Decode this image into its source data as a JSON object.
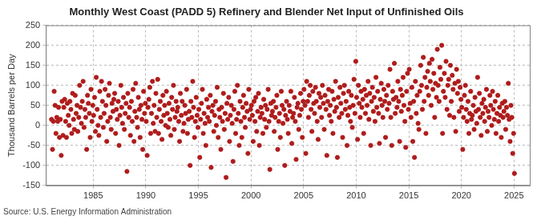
{
  "chart_data": {
    "type": "scatter",
    "title": "Monthly West Coast (PADD 5) Refinery and Blender Net Input of Unfinished Oils",
    "y_label": "Thousand Barrels per Day",
    "source": "Source: U.S. Energy Information Administration",
    "color": "#b01c1c",
    "marker": "circle",
    "grid": true,
    "xlim": [
      1980.5,
      2026.5
    ],
    "xticks": [
      1985,
      1990,
      1995,
      2000,
      2005,
      2010,
      2015,
      2020,
      2025
    ],
    "ylim": [
      -150,
      250
    ],
    "yticks": [
      -150,
      -100,
      -50,
      0,
      50,
      100,
      150,
      200,
      250
    ],
    "x": [
      1981.04,
      1981.13,
      1981.21,
      1981.29,
      1981.38,
      1981.46,
      1981.54,
      1981.63,
      1981.71,
      1981.79,
      1981.88,
      1981.96,
      1982.04,
      1982.13,
      1982.21,
      1982.29,
      1982.38,
      1982.46,
      1982.54,
      1982.63,
      1982.71,
      1982.79,
      1982.88,
      1982.96,
      1983.04,
      1983.13,
      1983.21,
      1983.29,
      1983.38,
      1983.46,
      1983.54,
      1983.63,
      1983.71,
      1983.79,
      1983.88,
      1983.96,
      1984.04,
      1984.13,
      1984.21,
      1984.29,
      1984.38,
      1984.46,
      1984.54,
      1984.63,
      1984.71,
      1984.79,
      1984.88,
      1984.96,
      1985.04,
      1985.13,
      1985.21,
      1985.29,
      1985.38,
      1985.46,
      1985.54,
      1985.63,
      1985.71,
      1985.79,
      1985.88,
      1985.96,
      1986.04,
      1986.13,
      1986.21,
      1986.29,
      1986.38,
      1986.46,
      1986.54,
      1986.63,
      1986.71,
      1986.79,
      1986.88,
      1986.96,
      1987.04,
      1987.13,
      1987.21,
      1987.29,
      1987.38,
      1987.46,
      1987.54,
      1987.63,
      1987.71,
      1987.79,
      1987.88,
      1987.96,
      1988.04,
      1988.13,
      1988.21,
      1988.29,
      1988.38,
      1988.46,
      1988.54,
      1988.63,
      1988.71,
      1988.79,
      1988.88,
      1988.96,
      1989.04,
      1989.13,
      1989.21,
      1989.29,
      1989.38,
      1989.46,
      1989.54,
      1989.63,
      1989.71,
      1989.79,
      1989.88,
      1989.96,
      1990.04,
      1990.13,
      1990.21,
      1990.29,
      1990.38,
      1990.46,
      1990.54,
      1990.63,
      1990.71,
      1990.79,
      1990.88,
      1990.96,
      1991.04,
      1991.13,
      1991.21,
      1991.29,
      1991.38,
      1991.46,
      1991.54,
      1991.63,
      1991.71,
      1991.79,
      1991.88,
      1991.96,
      1992.04,
      1992.13,
      1992.21,
      1992.29,
      1992.38,
      1992.46,
      1992.54,
      1992.63,
      1992.71,
      1992.79,
      1992.88,
      1992.96,
      1993.04,
      1993.13,
      1993.21,
      1993.29,
      1993.38,
      1993.46,
      1993.54,
      1993.63,
      1993.71,
      1993.79,
      1993.88,
      1993.96,
      1994.04,
      1994.13,
      1994.21,
      1994.29,
      1994.38,
      1994.46,
      1994.54,
      1994.63,
      1994.71,
      1994.79,
      1994.88,
      1994.96,
      1995.04,
      1995.13,
      1995.21,
      1995.29,
      1995.38,
      1995.46,
      1995.54,
      1995.63,
      1995.71,
      1995.79,
      1995.88,
      1995.96,
      1996.04,
      1996.13,
      1996.21,
      1996.29,
      1996.38,
      1996.46,
      1996.54,
      1996.63,
      1996.71,
      1996.79,
      1996.88,
      1996.96,
      1997.04,
      1997.13,
      1997.21,
      1997.29,
      1997.38,
      1997.46,
      1997.54,
      1997.63,
      1997.71,
      1997.79,
      1997.88,
      1997.96,
      1998.04,
      1998.13,
      1998.21,
      1998.29,
      1998.38,
      1998.46,
      1998.54,
      1998.63,
      1998.71,
      1998.79,
      1998.88,
      1998.96,
      1999.04,
      1999.13,
      1999.21,
      1999.29,
      1999.38,
      1999.46,
      1999.54,
      1999.63,
      1999.71,
      1999.79,
      1999.88,
      1999.96,
      2000.04,
      2000.13,
      2000.21,
      2000.29,
      2000.38,
      2000.46,
      2000.54,
      2000.63,
      2000.71,
      2000.79,
      2000.88,
      2000.96,
      2001.04,
      2001.13,
      2001.21,
      2001.29,
      2001.38,
      2001.46,
      2001.54,
      2001.63,
      2001.71,
      2001.79,
      2001.88,
      2001.96,
      2002.04,
      2002.13,
      2002.21,
      2002.29,
      2002.38,
      2002.46,
      2002.54,
      2002.63,
      2002.71,
      2002.79,
      2002.88,
      2002.96,
      2003.04,
      2003.13,
      2003.21,
      2003.29,
      2003.38,
      2003.46,
      2003.54,
      2003.63,
      2003.71,
      2003.79,
      2003.88,
      2003.96,
      2004.04,
      2004.13,
      2004.21,
      2004.29,
      2004.38,
      2004.46,
      2004.54,
      2004.63,
      2004.71,
      2004.79,
      2004.88,
      2004.96,
      2005.04,
      2005.13,
      2005.21,
      2005.29,
      2005.38,
      2005.46,
      2005.54,
      2005.63,
      2005.71,
      2005.79,
      2005.88,
      2005.96,
      2006.04,
      2006.13,
      2006.21,
      2006.29,
      2006.38,
      2006.46,
      2006.54,
      2006.63,
      2006.71,
      2006.79,
      2006.88,
      2006.96,
      2007.04,
      2007.13,
      2007.21,
      2007.29,
      2007.38,
      2007.46,
      2007.54,
      2007.63,
      2007.71,
      2007.79,
      2007.88,
      2007.96,
      2008.04,
      2008.13,
      2008.21,
      2008.29,
      2008.38,
      2008.46,
      2008.54,
      2008.63,
      2008.71,
      2008.79,
      2008.88,
      2008.96,
      2009.04,
      2009.13,
      2009.21,
      2009.29,
      2009.38,
      2009.46,
      2009.54,
      2009.63,
      2009.71,
      2009.79,
      2009.88,
      2009.96,
      2010.04,
      2010.13,
      2010.21,
      2010.29,
      2010.38,
      2010.46,
      2010.54,
      2010.63,
      2010.71,
      2010.79,
      2010.88,
      2010.96,
      2011.04,
      2011.13,
      2011.21,
      2011.29,
      2011.38,
      2011.46,
      2011.54,
      2011.63,
      2011.71,
      2011.79,
      2011.88,
      2011.96,
      2012.04,
      2012.13,
      2012.21,
      2012.29,
      2012.38,
      2012.46,
      2012.54,
      2012.63,
      2012.71,
      2012.79,
      2012.88,
      2012.96,
      2013.04,
      2013.13,
      2013.21,
      2013.29,
      2013.38,
      2013.46,
      2013.54,
      2013.63,
      2013.71,
      2013.79,
      2013.88,
      2013.96,
      2014.04,
      2014.13,
      2014.21,
      2014.29,
      2014.38,
      2014.46,
      2014.54,
      2014.63,
      2014.71,
      2014.79,
      2014.88,
      2014.96,
      2015.04,
      2015.13,
      2015.21,
      2015.29,
      2015.38,
      2015.46,
      2015.54,
      2015.63,
      2015.71,
      2015.79,
      2015.88,
      2015.96,
      2016.04,
      2016.13,
      2016.21,
      2016.29,
      2016.38,
      2016.46,
      2016.54,
      2016.63,
      2016.71,
      2016.79,
      2016.88,
      2016.96,
      2017.04,
      2017.13,
      2017.21,
      2017.29,
      2017.38,
      2017.46,
      2017.54,
      2017.63,
      2017.71,
      2017.79,
      2017.88,
      2017.96,
      2018.04,
      2018.13,
      2018.21,
      2018.29,
      2018.38,
      2018.46,
      2018.54,
      2018.63,
      2018.71,
      2018.79,
      2018.88,
      2018.96,
      2019.04,
      2019.13,
      2019.21,
      2019.29,
      2019.38,
      2019.46,
      2019.54,
      2019.63,
      2019.71,
      2019.79,
      2019.88,
      2019.96,
      2020.04,
      2020.13,
      2020.21,
      2020.29,
      2020.38,
      2020.46,
      2020.54,
      2020.63,
      2020.71,
      2020.79,
      2020.88,
      2020.96,
      2021.04,
      2021.13,
      2021.21,
      2021.29,
      2021.38,
      2021.46,
      2021.54,
      2021.63,
      2021.71,
      2021.79,
      2021.88,
      2021.96,
      2022.04,
      2022.13,
      2022.21,
      2022.29,
      2022.38,
      2022.46,
      2022.54,
      2022.63,
      2022.71,
      2022.79,
      2022.88,
      2022.96,
      2023.04,
      2023.13,
      2023.21,
      2023.29,
      2023.38,
      2023.46,
      2023.54,
      2023.63,
      2023.71,
      2023.79,
      2023.88,
      2023.96,
      2024.04,
      2024.13,
      2024.21,
      2024.29,
      2024.38,
      2024.46,
      2024.54,
      2024.63,
      2024.71,
      2024.79,
      2024.88,
      2024.96,
      2025.04
    ],
    "values": [
      15,
      -60,
      10,
      85,
      50,
      -20,
      20,
      10,
      45,
      -30,
      15,
      -75,
      60,
      -25,
      45,
      65,
      10,
      -30,
      55,
      25,
      0,
      60,
      40,
      -20,
      80,
      15,
      -10,
      75,
      30,
      50,
      -15,
      20,
      100,
      45,
      5,
      60,
      110,
      -5,
      40,
      20,
      -60,
      75,
      55,
      30,
      -30,
      90,
      10,
      50,
      25,
      70,
      -15,
      120,
      40,
      0,
      -25,
      85,
      20,
      110,
      60,
      -5,
      30,
      90,
      50,
      -40,
      10,
      75,
      105,
      20,
      -10,
      55,
      35,
      65,
      80,
      -20,
      40,
      15,
      60,
      -50,
      25,
      100,
      45,
      5,
      70,
      -10,
      30,
      55,
      -115,
      80,
      20,
      45,
      -25,
      60,
      10,
      90,
      -40,
      35,
      105,
      20,
      -5,
      70,
      40,
      -30,
      50,
      15,
      -60,
      85,
      30,
      55,
      10,
      -75,
      45,
      65,
      95,
      -20,
      30,
      110,
      5,
      50,
      -15,
      80,
      20,
      115,
      -20,
      40,
      60,
      10,
      -35,
      75,
      25,
      50,
      0,
      85,
      30,
      -5,
      55,
      15,
      -25,
      70,
      40,
      100,
      -10,
      20,
      60,
      35,
      45,
      10,
      -40,
      80,
      25,
      60,
      -15,
      5,
      50,
      30,
      90,
      -20,
      15,
      35,
      -100,
      60,
      20,
      110,
      45,
      -30,
      10,
      70,
      25,
      -5,
      40,
      -80,
      15,
      55,
      90,
      -20,
      30,
      5,
      -50,
      65,
      20,
      45,
      10,
      75,
      -105,
      35,
      50,
      -15,
      25,
      60,
      0,
      95,
      -30,
      40,
      20,
      -60,
      45,
      10,
      80,
      -10,
      30,
      -130,
      55,
      15,
      70,
      -40,
      25,
      50,
      5,
      -90,
      40,
      85,
      -20,
      15,
      100,
      30,
      -50,
      60,
      10,
      -30,
      45,
      75,
      20,
      -5,
      55,
      35,
      -70,
      90,
      15,
      40,
      50,
      25,
      -40,
      60,
      10,
      70,
      -15,
      35,
      80,
      -50,
      20,
      45,
      30,
      -20,
      65,
      15,
      50,
      -5,
      40,
      90,
      10,
      -110,
      55,
      25,
      35,
      60,
      -15,
      20,
      45,
      75,
      -60,
      10,
      30,
      -30,
      85,
      50,
      5,
      40,
      -100,
      25,
      60,
      15,
      -20,
      50,
      35,
      85,
      -45,
      20,
      30,
      70,
      10,
      -85,
      45,
      55,
      -10,
      25,
      80,
      40,
      -30,
      60,
      90,
      50,
      -70,
      110,
      60,
      20,
      75,
      100,
      40,
      -15,
      85,
      55,
      30,
      95,
      60,
      10,
      -35,
      80,
      45,
      70,
      20,
      100,
      55,
      -10,
      75,
      40,
      -75,
      60,
      90,
      25,
      50,
      10,
      85,
      -20,
      65,
      35,
      110,
      45,
      -80,
      70,
      20,
      95,
      55,
      30,
      -30,
      80,
      100,
      40,
      60,
      -50,
      25,
      85,
      45,
      10,
      75,
      -5,
      50,
      115,
      30,
      160,
      70,
      -35,
      100,
      55,
      20,
      85,
      45,
      65,
      -20,
      90,
      30,
      75,
      50,
      110,
      15,
      80,
      -50,
      60,
      95,
      35,
      70,
      10,
      120,
      45,
      85,
      30,
      -45,
      65,
      105,
      50,
      20,
      90,
      60,
      -30,
      75,
      40,
      100,
      55,
      140,
      20,
      -50,
      85,
      65,
      155,
      30,
      70,
      45,
      110,
      60,
      -40,
      90,
      35,
      75,
      120,
      50,
      10,
      -55,
      85,
      130,
      40,
      140,
      55,
      20,
      95,
      -40,
      60,
      -80,
      110,
      30,
      75,
      5,
      -10,
      85,
      150,
      100,
      40,
      170,
      60,
      120,
      -20,
      95,
      135,
      75,
      155,
      110,
      50,
      165,
      90,
      130,
      20,
      105,
      70,
      190,
      100,
      60,
      145,
      115,
      200,
      -20,
      85,
      130,
      70,
      160,
      40,
      100,
      115,
      25,
      150,
      60,
      125,
      90,
      20,
      105,
      -15,
      140,
      80,
      110,
      35,
      95,
      65,
      45,
      -60,
      20,
      75,
      100,
      40,
      10,
      60,
      -20,
      30,
      85,
      15,
      25,
      50,
      -10,
      70,
      35,
      5,
      120,
      40,
      80,
      20,
      -25,
      55,
      30,
      65,
      10,
      45,
      90,
      -15,
      35,
      20,
      75,
      50,
      0,
      85,
      40,
      15,
      60,
      -20,
      30,
      75,
      10,
      45,
      25,
      -30,
      55,
      20,
      35,
      60,
      -10,
      45,
      25,
      105,
      15,
      -40,
      50,
      20,
      -70,
      -20,
      -120
    ]
  }
}
